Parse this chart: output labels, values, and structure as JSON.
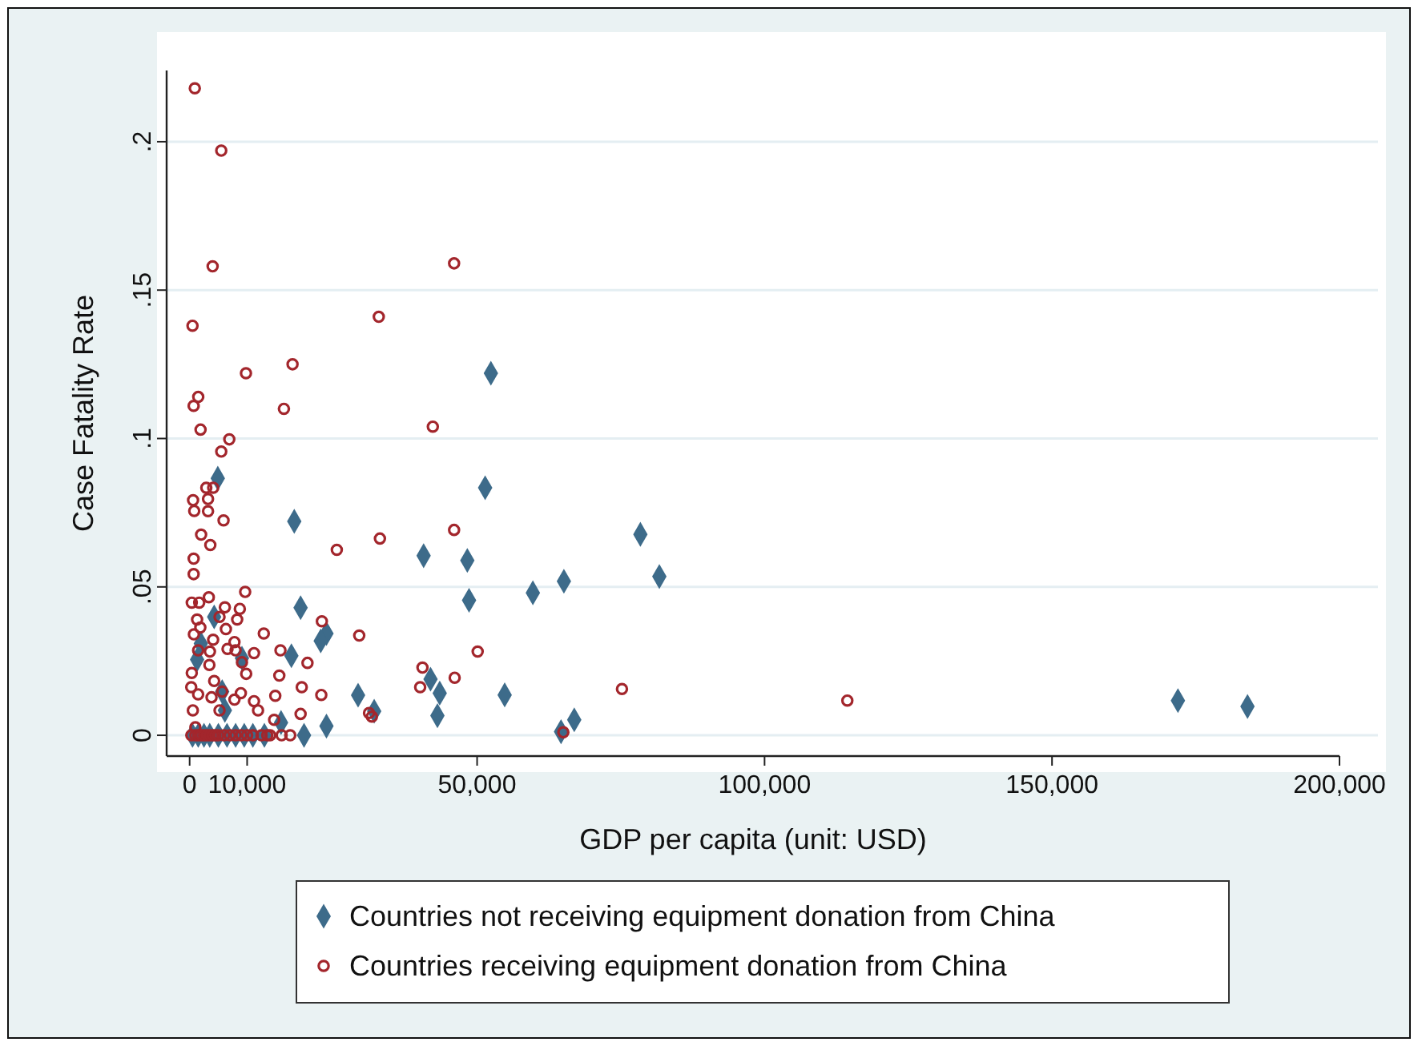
{
  "chart_data": {
    "type": "scatter",
    "xlabel": "GDP per capita (unit: USD)",
    "ylabel": "Case Fatality Rate",
    "xlim": [
      -4000,
      200000
    ],
    "xticks": [
      0,
      {
        "value": 10000,
        "label": "10,000"
      },
      {
        "value": 50000,
        "label": "50,000"
      },
      {
        "value": 100000,
        "label": "100,000"
      },
      {
        "value": 150000,
        "label": "150,000"
      },
      {
        "value": 200000,
        "label": "200,000"
      }
    ],
    "ylim": [
      -0.007,
      0.224
    ],
    "yticks": [
      0,
      {
        "value": 0.05,
        "label": ".05"
      },
      {
        "value": 0.1,
        "label": ".1"
      },
      {
        "value": 0.15,
        "label": ".15"
      },
      {
        "value": 0.2,
        "label": ".2"
      }
    ],
    "grid": "y",
    "legend": "bottom",
    "series": [
      {
        "name": "Countries not receiving equipment donation from China",
        "color": "#3d6b8a",
        "marker": "diamond",
        "x": [
          4900,
          52400,
          51400,
          18200,
          78400,
          81700,
          65100,
          59700,
          48600,
          40700,
          48300,
          19300,
          4270,
          23800,
          22800,
          1950,
          1300,
          9100,
          17700,
          5660,
          41900,
          43500,
          54800,
          29300,
          6130,
          32100,
          43100,
          66900,
          15900,
          23800,
          64600,
          171900,
          184000,
          500,
          1500,
          2500,
          3500,
          5000,
          6500,
          8000,
          9500,
          11000,
          13000,
          19900
        ],
        "values": [
          0.0866,
          0.122,
          0.0834,
          0.0721,
          0.0677,
          0.0535,
          0.0519,
          0.048,
          0.0455,
          0.0605,
          0.0589,
          0.043,
          0.0399,
          0.0343,
          0.0318,
          0.0309,
          0.0255,
          0.026,
          0.0268,
          0.0147,
          0.0189,
          0.0142,
          0.0136,
          0.0135,
          0.0084,
          0.0081,
          0.0066,
          0.0052,
          0.0043,
          0.0031,
          0.0012,
          0.0117,
          0.0097,
          0,
          0,
          0,
          0,
          0,
          0,
          0,
          0,
          0,
          0,
          0
        ]
      },
      {
        "name": "Countries receiving equipment donation from China",
        "color": "#a3262c",
        "marker": "circle",
        "x": [
          900,
          5500,
          4000,
          46000,
          500,
          32900,
          9800,
          17900,
          1500,
          700,
          16400,
          1900,
          6900,
          5500,
          42300,
          600,
          2900,
          4100,
          3200,
          800,
          3200,
          5900,
          2000,
          3600,
          700,
          700,
          25600,
          33100,
          46000,
          370,
          1670,
          3340,
          9660,
          6130,
          8730,
          5200,
          8270,
          1300,
          1860,
          4090,
          6310,
          7800,
          740,
          1480,
          3530,
          6590,
          7990,
          11200,
          12900,
          3440,
          9100,
          9840,
          370,
          4270,
          5660,
          8910,
          280,
          1480,
          3810,
          560,
          5200,
          7800,
          11200,
          11900,
          14900,
          15600,
          15800,
          20500,
          23000,
          29500,
          19500,
          22900,
          14700,
          19300,
          31200,
          31700,
          40500,
          40100,
          46100,
          1000,
          50100,
          75200,
          65000,
          114400,
          300,
          1000,
          1500,
          2000,
          2500,
          3000,
          3500,
          4000,
          4500,
          5000,
          6000,
          7000,
          8000,
          9000,
          10000,
          11000,
          12500,
          13500,
          14000,
          16000,
          17500
        ],
        "values": [
          0.218,
          0.197,
          0.158,
          0.159,
          0.138,
          0.141,
          0.122,
          0.125,
          0.114,
          0.111,
          0.11,
          0.103,
          0.0997,
          0.0956,
          0.104,
          0.0792,
          0.0834,
          0.0834,
          0.0796,
          0.0756,
          0.0755,
          0.0724,
          0.0676,
          0.0641,
          0.0595,
          0.0543,
          0.0625,
          0.0663,
          0.0692,
          0.0447,
          0.0447,
          0.0465,
          0.0483,
          0.0431,
          0.0426,
          0.0399,
          0.039,
          0.039,
          0.0363,
          0.0322,
          0.0358,
          0.0314,
          0.034,
          0.0286,
          0.0282,
          0.0291,
          0.0286,
          0.0277,
          0.0343,
          0.0237,
          0.0246,
          0.0207,
          0.021,
          0.0183,
          0.0147,
          0.0142,
          0.0162,
          0.0138,
          0.0128,
          0.0084,
          0.0084,
          0.012,
          0.0115,
          0.0084,
          0.0133,
          0.0201,
          0.0286,
          0.0244,
          0.0384,
          0.0336,
          0.0162,
          0.0136,
          0.0052,
          0.0072,
          0.0075,
          0.0063,
          0.0228,
          0.0162,
          0.0194,
          0.0027,
          0.0282,
          0.0156,
          0.001,
          0.0117,
          0,
          0,
          0,
          0,
          0,
          0,
          0,
          0,
          0,
          0,
          0,
          0,
          0,
          0,
          0,
          0,
          0,
          0,
          0,
          0,
          0
        ]
      }
    ]
  }
}
